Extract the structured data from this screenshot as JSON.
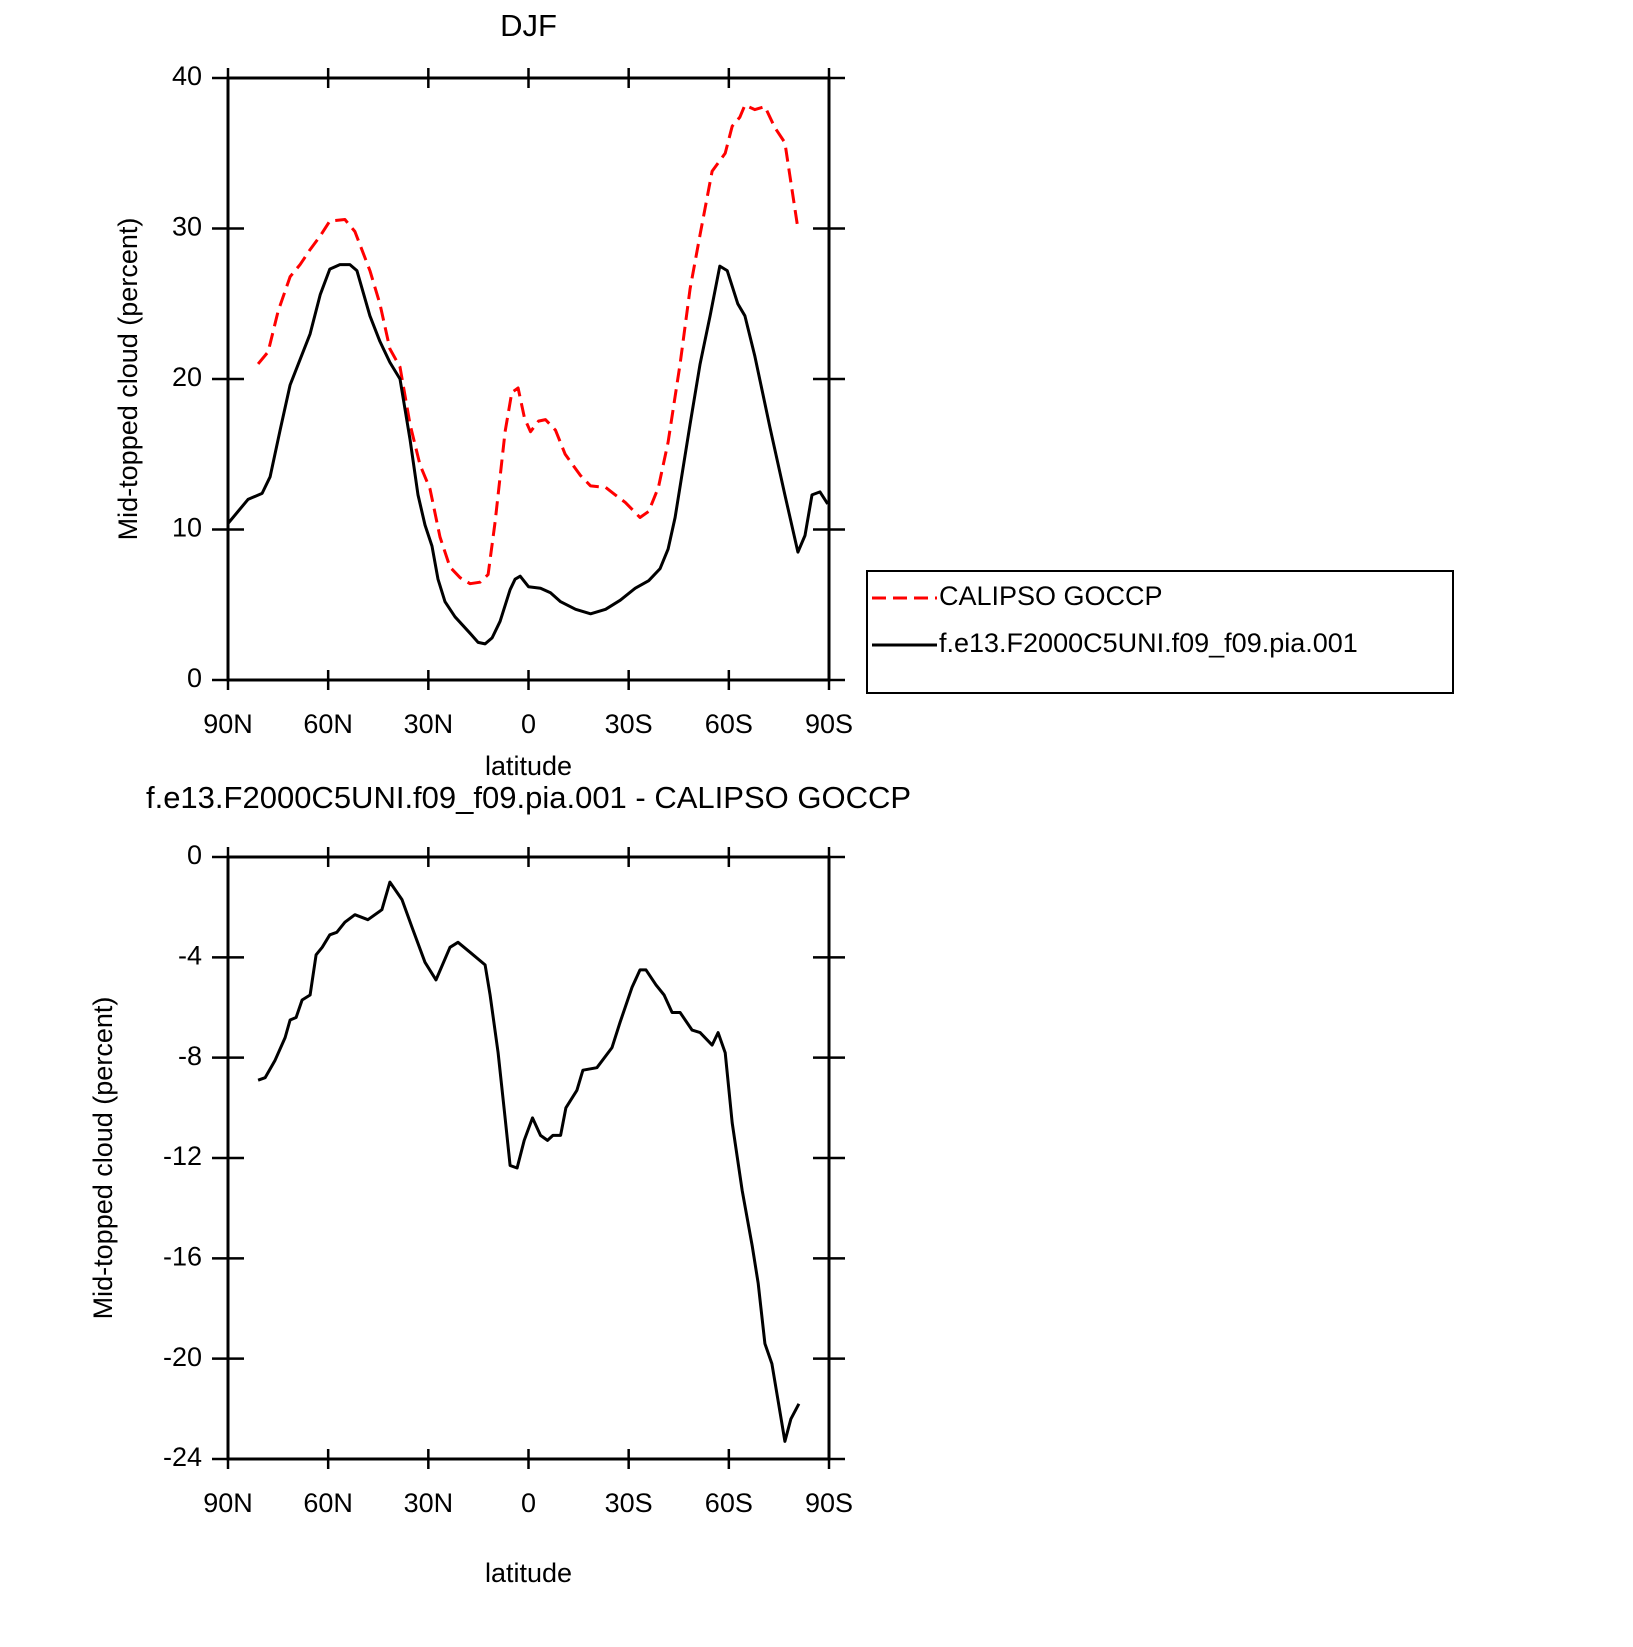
{
  "chart_data": [
    {
      "type": "line",
      "title": "DJF",
      "x_label": "latitude",
      "y_label": "Mid-topped cloud (percent)",
      "xlim": [
        90,
        -90
      ],
      "ylim": [
        0,
        40
      ],
      "xticks": [
        {
          "value": 90,
          "label": "90N"
        },
        {
          "value": 60,
          "label": "60N"
        },
        {
          "value": 30,
          "label": "30N"
        },
        0,
        {
          "value": -30,
          "label": "30S"
        },
        {
          "value": -60,
          "label": "60S"
        },
        {
          "value": -90,
          "label": "90S"
        }
      ],
      "yticks": [
        0,
        10,
        20,
        30,
        40
      ],
      "legend": "outside right",
      "series": [
        {
          "name": "CALIPSO GOCCP",
          "color": "#ff0000",
          "dash": true,
          "x": [
            81,
            78,
            75,
            71.4,
            68.4,
            65.4,
            62.4,
            59.5,
            55,
            52,
            47.5,
            44.5,
            41.5,
            38.5,
            35.5,
            32.5,
            29.5,
            26.5,
            23.5,
            20.5,
            17.5,
            14.5,
            12.1,
            10,
            7,
            5,
            3.1,
            1.2,
            -0.6,
            -3,
            -5.1,
            -8.1,
            -11,
            -15.5,
            -18.6,
            -23.1,
            -26,
            -29,
            -33.4,
            -36,
            -38.9,
            -41.8,
            -45.4,
            -48.4,
            -51.4,
            -55,
            -58.9,
            -61,
            -63.3,
            -64.8,
            -67.8,
            -70.8,
            -73.8,
            -76.8,
            -78.3,
            -80.7
          ],
          "values": [
            21.0,
            21.8,
            24.5,
            26.8,
            27.6,
            28.6,
            29.5,
            30.5,
            30.6,
            29.8,
            27.2,
            25.0,
            22.0,
            20.8,
            17.0,
            14.3,
            12.7,
            9.5,
            7.5,
            6.8,
            6.4,
            6.5,
            7.0,
            10.5,
            16.5,
            19.1,
            19.4,
            17.4,
            16.5,
            17.2,
            17.3,
            16.6,
            15.0,
            13.6,
            12.9,
            12.8,
            12.3,
            11.8,
            10.8,
            11.2,
            12.8,
            15.8,
            21.0,
            26.0,
            29.6,
            33.8,
            35.0,
            36.8,
            37.4,
            38.2,
            37.9,
            38.1,
            36.7,
            35.7,
            33.5,
            30.0
          ]
        },
        {
          "name": "f.e13.F2000C5UNI.f09_f09.pia.001",
          "color": "#000000",
          "dash": false,
          "x": [
            90,
            84,
            79.8,
            77.4,
            74.4,
            71.4,
            68.4,
            65.4,
            62.4,
            59.5,
            56.5,
            53.5,
            51.4,
            47.5,
            44.5,
            41.5,
            38.5,
            35.5,
            33.1,
            31,
            28.9,
            27.1,
            25,
            22,
            17.5,
            15.1,
            13,
            10.9,
            8.5,
            5.5,
            4,
            2.5,
            0,
            -3.6,
            -6.6,
            -9.6,
            -14.1,
            -18.6,
            -23.1,
            -27.5,
            -32,
            -36,
            -39.4,
            -41.8,
            -43.9,
            -48.4,
            -51.4,
            -54.4,
            -57.3,
            -59.5,
            -62.7,
            -64.8,
            -67.8,
            -72.3,
            -76.8,
            -80.7,
            -82.8,
            -84.9,
            -87.3,
            -89.6
          ],
          "values": [
            10.4,
            12.0,
            12.4,
            13.5,
            16.6,
            19.6,
            21.3,
            23.0,
            25.6,
            27.3,
            27.6,
            27.6,
            27.2,
            24.2,
            22.5,
            21.1,
            20.0,
            16.0,
            12.3,
            10.3,
            8.9,
            6.7,
            5.2,
            4.2,
            3.1,
            2.5,
            2.4,
            2.8,
            3.9,
            6.0,
            6.7,
            6.9,
            6.2,
            6.1,
            5.8,
            5.2,
            4.7,
            4.4,
            4.7,
            5.3,
            6.1,
            6.6,
            7.4,
            8.7,
            10.8,
            17.0,
            21.0,
            24.2,
            27.5,
            27.2,
            25.0,
            24.2,
            21.5,
            16.8,
            12.3,
            8.5,
            9.6,
            12.3,
            12.5,
            11.7
          ]
        }
      ]
    },
    {
      "type": "line",
      "title": "f.e13.F2000C5UNI.f09_f09.pia.001 - CALIPSO GOCCP",
      "x_label": "latitude",
      "y_label": "Mid-topped cloud (percent)",
      "xlim": [
        90,
        -90
      ],
      "ylim": [
        -24,
        0
      ],
      "xticks": [
        {
          "value": 90,
          "label": "90N"
        },
        {
          "value": 60,
          "label": "60N"
        },
        {
          "value": 30,
          "label": "30N"
        },
        0,
        {
          "value": -30,
          "label": "30S"
        },
        {
          "value": -60,
          "label": "60S"
        },
        {
          "value": -90,
          "label": "90S"
        }
      ],
      "yticks": [
        0,
        -4,
        -8,
        -12,
        -16,
        -20,
        -24
      ],
      "series": [
        {
          "color": "#000000",
          "dash": false,
          "x": [
            81,
            78.9,
            75.9,
            72.9,
            71.4,
            69.6,
            67.8,
            65.4,
            63.6,
            61.8,
            59.5,
            57.4,
            55,
            52,
            48.1,
            43.9,
            41.5,
            37.9,
            34.9,
            31,
            27.7,
            23.5,
            21.1,
            17.5,
            13,
            11.5,
            9.1,
            7,
            5.5,
            3.4,
            1.3,
            -1.2,
            -3.6,
            -5.7,
            -7.3,
            -9.6,
            -11.2,
            -14.5,
            -16.3,
            -20.5,
            -25,
            -27.4,
            -31,
            -33.4,
            -35.2,
            -38.2,
            -40.6,
            -43,
            -45.4,
            -49,
            -51.4,
            -55,
            -56.8,
            -58.9,
            -61,
            -64,
            -67,
            -68.8,
            -70.8,
            -72.9,
            -76.8,
            -78.6,
            -81
          ],
          "values": [
            -8.9,
            -8.8,
            -8.1,
            -7.2,
            -6.5,
            -6.4,
            -5.7,
            -5.5,
            -3.9,
            -3.6,
            -3.1,
            -3.0,
            -2.6,
            -2.3,
            -2.5,
            -2.1,
            -1.0,
            -1.7,
            -2.8,
            -4.2,
            -4.9,
            -3.6,
            -3.4,
            -3.8,
            -4.3,
            -5.5,
            -7.8,
            -10.4,
            -12.3,
            -12.4,
            -11.3,
            -10.4,
            -11.1,
            -11.3,
            -11.1,
            -11.1,
            -10.0,
            -9.3,
            -8.5,
            -8.4,
            -7.6,
            -6.6,
            -5.2,
            -4.5,
            -4.5,
            -5.1,
            -5.5,
            -6.2,
            -6.2,
            -6.9,
            -7.0,
            -7.5,
            -7.0,
            -7.8,
            -10.6,
            -13.3,
            -15.5,
            -17.0,
            -19.4,
            -20.2,
            -23.3,
            -22.4,
            -21.8
          ]
        }
      ]
    }
  ]
}
